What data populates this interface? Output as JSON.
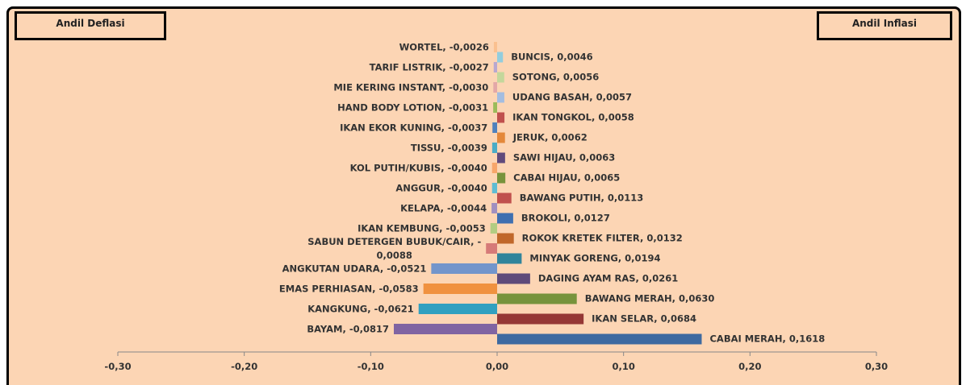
{
  "chart_data": {
    "type": "bar",
    "orientation": "horizontal",
    "annotations": [
      "Andil Deflasi",
      "Andil Inflasi"
    ],
    "value_labels": [
      "WORTEL, -0,0026",
      "BUNCIS, 0,0046",
      "TARIF LISTRIK, -0,0027",
      "SOTONG, 0,0056",
      "MIE KERING INSTANT, -0,0030",
      "UDANG BASAH, 0,0057",
      "HAND BODY LOTION, -0,0031",
      "IKAN TONGKOL, 0,0058",
      "IKAN EKOR KUNING, -0,0037",
      "JERUK, 0,0062",
      "TISSU, -0,0039",
      "SAWI HIJAU, 0,0063",
      "KOL PUTIH/KUBIS, -0,0040",
      "CABAI HIJAU, 0,0065",
      "ANGGUR, -0,0040",
      "BAWANG PUTIH, 0,0113",
      "KELAPA, -0,0044",
      "BROKOLI, 0,0127",
      "IKAN KEMBUNG, -0,0053",
      "ROKOK KRETEK FILTER, 0,0132",
      "SABUN DETERGEN BUBUK/CAIR, -\n0,0088",
      "MINYAK GORENG, 0,0194",
      "ANGKUTAN UDARA, -0,0521",
      "DAGING AYAM RAS, 0,0261",
      "EMAS PERHIASAN, -0,0583",
      "BAWANG MERAH, 0,0630",
      "KANGKUNG, -0,0621",
      "IKAN SELAR, 0,0684",
      "BAYAM, -0,0817",
      "CABAI MERAH, 0,1618"
    ],
    "values": [
      -0.0026,
      0.0046,
      -0.0027,
      0.0056,
      -0.003,
      0.0057,
      -0.0031,
      0.0058,
      -0.0037,
      0.0062,
      -0.0039,
      0.0063,
      -0.004,
      0.0065,
      -0.004,
      0.0113,
      -0.0044,
      0.0127,
      -0.0053,
      0.0132,
      -0.0088,
      0.0194,
      -0.0521,
      0.0261,
      -0.0583,
      0.063,
      -0.0621,
      0.0684,
      -0.0817,
      0.1618
    ],
    "colors": [
      "#fac090",
      "#93cddd",
      "#b8a8d0",
      "#c4d79b",
      "#e3a8a8",
      "#a4bde0",
      "#9bbb59",
      "#c0504d",
      "#4f81bd",
      "#e4883a",
      "#4bacc6",
      "#604a7b",
      "#f7a66a",
      "#77933c",
      "#5fbcd3",
      "#c0504d",
      "#a08fc0",
      "#3f6fb0",
      "#b2cc82",
      "#c0672a",
      "#d67a78",
      "#31849b",
      "#7395cb",
      "#5f4a7a",
      "#f0913f",
      "#77933c",
      "#31a0c0",
      "#953735",
      "#8064a2",
      "#3e6aa0"
    ],
    "xlim": [
      -0.3,
      0.3
    ],
    "xticks": [
      {
        "value": -0.3,
        "label": "-0,30"
      },
      {
        "value": -0.2,
        "label": "-0,20"
      },
      {
        "value": -0.1,
        "label": "-0,10"
      },
      {
        "value": 0,
        "label": "0,00"
      },
      {
        "value": 0.1,
        "label": "0,10"
      },
      {
        "value": 0.2,
        "label": "0,20"
      },
      {
        "value": 0.3,
        "label": "0,30"
      }
    ]
  }
}
